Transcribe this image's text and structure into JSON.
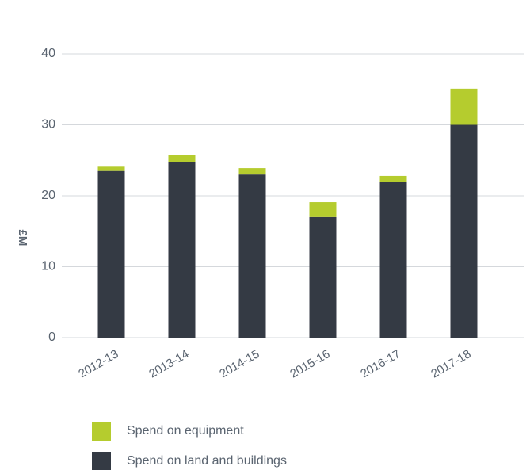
{
  "chart_data": {
    "type": "stacked_bar",
    "y_label": "£M",
    "categories": [
      "2012-13",
      "2013-14",
      "2014-15",
      "2015-16",
      "2016-17",
      "2017-18"
    ],
    "series": [
      {
        "name": "Spend on equipment",
        "color": "#b5cc2e",
        "values": [
          0.6,
          1.1,
          0.9,
          2.1,
          0.9,
          5.1
        ]
      },
      {
        "name": "Spend on land and buildings",
        "color": "#343a44",
        "values": [
          23.5,
          24.7,
          23.0,
          17.0,
          21.9,
          30.0
        ]
      }
    ],
    "ylim": [
      0,
      40
    ],
    "yticks": [
      0,
      10,
      20,
      30,
      40
    ],
    "grid": true
  }
}
